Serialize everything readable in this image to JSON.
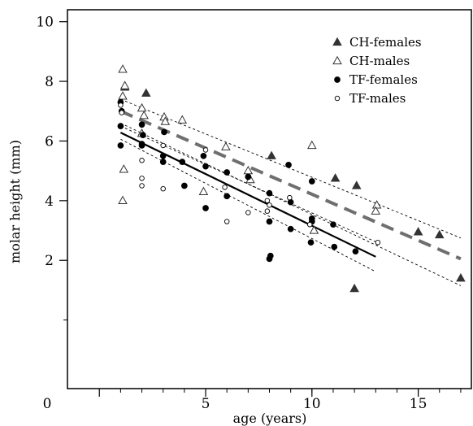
{
  "chart_data": {
    "type": "scatter",
    "xlabel": "age (years)",
    "ylabel": "molar height (mm)",
    "xlim": [
      -1.5,
      17.5
    ],
    "ylim": [
      -2.3,
      10.4
    ],
    "x_ticks": [
      0,
      5,
      10,
      15
    ],
    "y_ticks": [
      2,
      4,
      6,
      8,
      10
    ],
    "x_minor_ticks": [
      1,
      2,
      3,
      4,
      5,
      6,
      7,
      8,
      9,
      10,
      11,
      12,
      13,
      14,
      15,
      16,
      17
    ],
    "y_minor_ticks": [
      0
    ],
    "origin_label": "0",
    "legend_position": "top-right",
    "grid": false,
    "series": [
      {
        "name": "CH-females",
        "marker": "filled-triangle",
        "color": "#333333",
        "points": [
          [
            1.2,
            7.8
          ],
          [
            2.2,
            7.6
          ],
          [
            8.1,
            5.5
          ],
          [
            11.1,
            4.75
          ],
          [
            12.1,
            4.5
          ],
          [
            12.0,
            1.05
          ],
          [
            15.0,
            2.95
          ],
          [
            16.0,
            2.85
          ],
          [
            17.0,
            1.4
          ]
        ]
      },
      {
        "name": "CH-males",
        "marker": "open-triangle",
        "color": "#333333",
        "points": [
          [
            1.1,
            8.4
          ],
          [
            1.2,
            7.85
          ],
          [
            1.1,
            7.5
          ],
          [
            1.15,
            5.05
          ],
          [
            1.1,
            4.0
          ],
          [
            2.0,
            7.1
          ],
          [
            2.1,
            6.85
          ],
          [
            2.0,
            6.25
          ],
          [
            3.05,
            6.8
          ],
          [
            3.1,
            6.65
          ],
          [
            3.9,
            6.7
          ],
          [
            5.95,
            5.8
          ],
          [
            4.9,
            4.3
          ],
          [
            7.0,
            5.0
          ],
          [
            7.1,
            4.7
          ],
          [
            10.0,
            5.85
          ],
          [
            10.1,
            3.0
          ],
          [
            13.05,
            3.85
          ],
          [
            13.0,
            3.65
          ]
        ]
      },
      {
        "name": "TF-females",
        "marker": "filled-circle",
        "color": "#000000",
        "points": [
          [
            1.0,
            7.3
          ],
          [
            1.05,
            7.0
          ],
          [
            1.0,
            6.5
          ],
          [
            1.0,
            5.85
          ],
          [
            2.0,
            6.55
          ],
          [
            2.05,
            6.2
          ],
          [
            2.0,
            5.9
          ],
          [
            2.0,
            5.85
          ],
          [
            3.05,
            6.3
          ],
          [
            3.0,
            5.5
          ],
          [
            3.0,
            5.3
          ],
          [
            3.9,
            5.3
          ],
          [
            4.0,
            4.5
          ],
          [
            4.9,
            5.5
          ],
          [
            5.0,
            5.15
          ],
          [
            5.0,
            3.75
          ],
          [
            6.0,
            4.95
          ],
          [
            6.0,
            4.15
          ],
          [
            7.0,
            4.8
          ],
          [
            8.0,
            4.25
          ],
          [
            8.0,
            3.3
          ],
          [
            8.05,
            2.15
          ],
          [
            8.0,
            2.05
          ],
          [
            8.9,
            5.2
          ],
          [
            9.0,
            3.95
          ],
          [
            9.0,
            3.05
          ],
          [
            10.0,
            4.65
          ],
          [
            10.0,
            3.4
          ],
          [
            10.0,
            3.3
          ],
          [
            9.95,
            2.6
          ],
          [
            11.0,
            3.2
          ],
          [
            11.05,
            2.45
          ],
          [
            12.05,
            2.3
          ]
        ]
      },
      {
        "name": "TF-males",
        "marker": "open-circle",
        "color": "#000000",
        "points": [
          [
            1.0,
            7.2
          ],
          [
            1.05,
            6.95
          ],
          [
            2.0,
            5.35
          ],
          [
            2.0,
            4.75
          ],
          [
            2.0,
            4.5
          ],
          [
            3.0,
            5.85
          ],
          [
            3.0,
            4.4
          ],
          [
            5.0,
            5.7
          ],
          [
            5.9,
            4.45
          ],
          [
            6.0,
            3.3
          ],
          [
            7.0,
            3.6
          ],
          [
            7.9,
            4.0
          ],
          [
            8.0,
            3.85
          ],
          [
            7.9,
            3.65
          ],
          [
            8.95,
            4.1
          ],
          [
            9.9,
            3.2
          ],
          [
            13.1,
            2.6
          ]
        ]
      }
    ],
    "fits": [
      {
        "group": "CH",
        "style": "dashed-thick",
        "color": "#6f6f6f",
        "x_range": [
          1,
          17
        ],
        "y_start": 7.0,
        "y_end": 2.05,
        "ci_upper": [
          [
            1,
            7.4
          ],
          [
            17,
            2.75
          ]
        ],
        "ci_lower": [
          [
            1,
            6.6
          ],
          [
            17,
            1.15
          ]
        ]
      },
      {
        "group": "TF",
        "style": "solid",
        "color": "#000000",
        "x_range": [
          1,
          13
        ],
        "y_start": 6.28,
        "y_end": 2.12,
        "ci_upper": [
          [
            1,
            6.5
          ],
          [
            13,
            2.62
          ]
        ],
        "ci_lower": [
          [
            1,
            6.06
          ],
          [
            13,
            1.62
          ]
        ]
      }
    ]
  }
}
